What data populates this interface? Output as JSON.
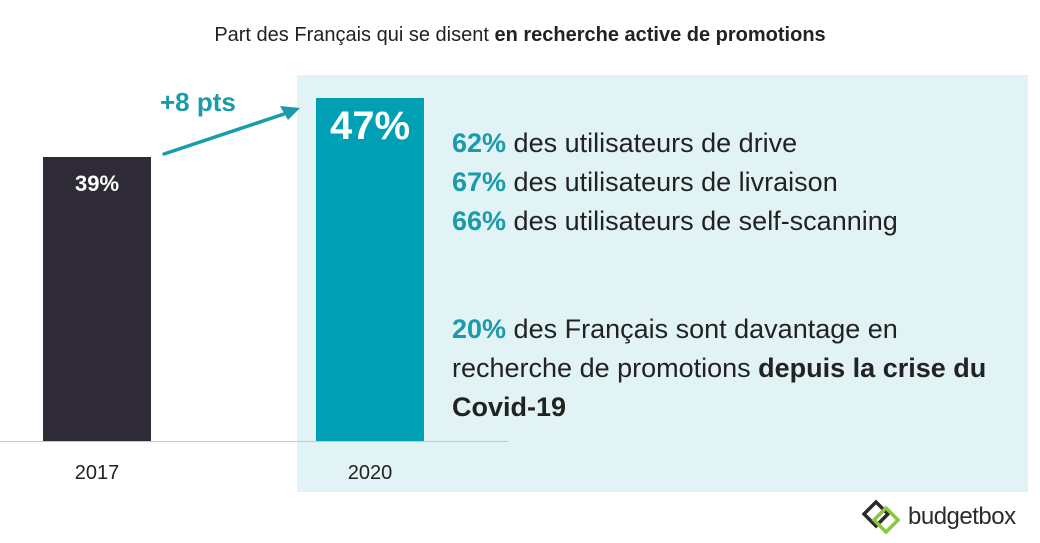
{
  "title": {
    "prefix": "Part des Français qui se disent ",
    "bold": "en recherche active de promotions"
  },
  "chart_data": {
    "type": "bar",
    "categories": [
      "2017",
      "2020"
    ],
    "values": [
      39,
      47
    ],
    "data_labels": [
      "39%",
      "47%"
    ],
    "ylim": [
      0,
      100
    ],
    "grid": false,
    "colors": [
      "#2e2b36",
      "#00a0b4"
    ],
    "annotation": "+8 pts"
  },
  "stats": [
    {
      "pct": "62%",
      "text": " des utilisateurs de drive"
    },
    {
      "pct": "67%",
      "text": " des utilisateurs de livraison"
    },
    {
      "pct": "66%",
      "text": " des utilisateurs de self-scanning"
    }
  ],
  "note": {
    "pct": "20%",
    "text": " des Français sont davantage en recherche de promotions ",
    "bold": "depuis la crise du Covid-19"
  },
  "logo": {
    "text": "budgetbox"
  },
  "colors": {
    "accent": "#00a0b4",
    "accent_text": "#1a9aaa",
    "dark": "#2e2b36",
    "panel": "#e1f3f5"
  }
}
